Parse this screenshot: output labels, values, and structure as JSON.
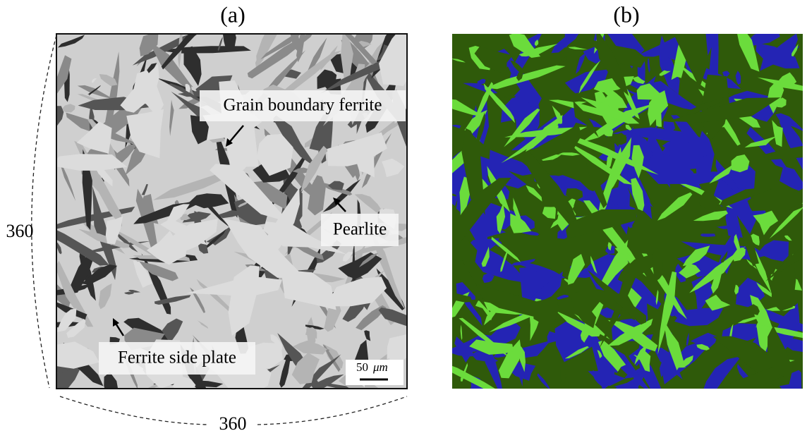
{
  "panels": [
    {
      "label": "(a)",
      "annotations": [
        "Grain boundary ferrite",
        "Pearlite",
        "Ferrite side plate"
      ],
      "scale_bar": {
        "value": "50",
        "unit": "μm"
      },
      "dimensions": {
        "height": "360",
        "width": "360"
      }
    },
    {
      "label": "(b)"
    }
  ]
}
